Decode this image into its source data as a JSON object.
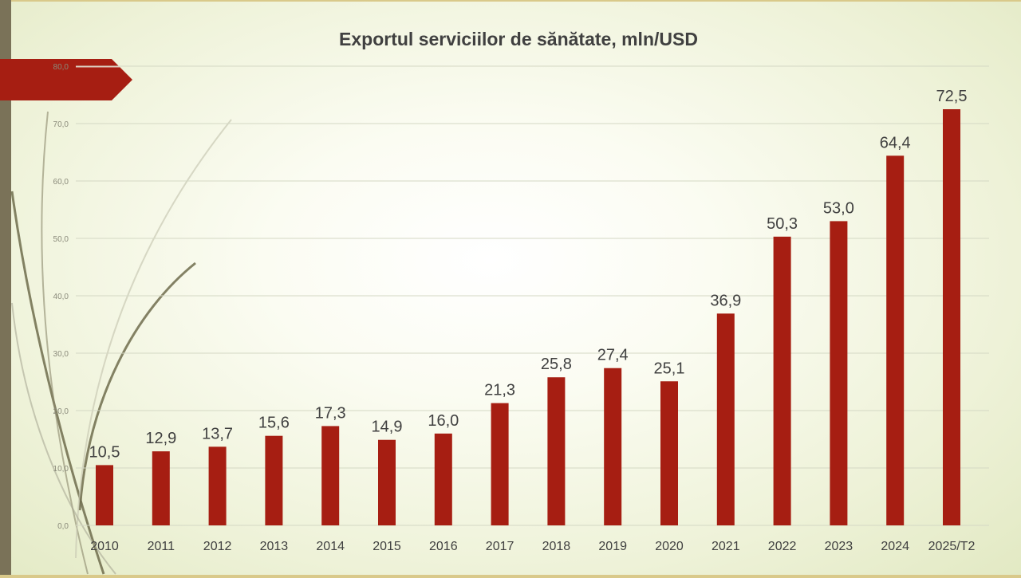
{
  "slide": {
    "accent_color": "#a61e12",
    "frame_color": "#7a7258"
  },
  "chart_data": {
    "type": "bar",
    "title": "Exportul serviciilor de sănătate, mln/USD",
    "xlabel": "",
    "ylabel": "",
    "categories": [
      "2010",
      "2011",
      "2012",
      "2013",
      "2014",
      "2015",
      "2016",
      "2017",
      "2018",
      "2019",
      "2020",
      "2021",
      "2022",
      "2023",
      "2024",
      "2025/T2"
    ],
    "values": [
      10.5,
      12.9,
      13.7,
      15.6,
      17.3,
      14.9,
      16.0,
      21.3,
      25.8,
      27.4,
      25.1,
      36.9,
      50.3,
      53.0,
      64.4,
      72.5
    ],
    "value_labels": [
      "10,5",
      "12,9",
      "13,7",
      "15,6",
      "17,3",
      "14,9",
      "16,0",
      "21,3",
      "25,8",
      "27,4",
      "25,1",
      "36,9",
      "50,3",
      "53,0",
      "64,4",
      "72,5"
    ],
    "y_ticks": [
      0,
      10,
      20,
      30,
      40,
      50,
      60,
      70,
      80
    ],
    "y_tick_labels": [
      "0,0",
      "10,0",
      "20,0",
      "30,0",
      "40,0",
      "50,0",
      "60,0",
      "70,0",
      "80,0"
    ],
    "ylim": [
      0,
      80
    ],
    "grid": true,
    "legend": "none",
    "bar_color": "#a61e12"
  }
}
